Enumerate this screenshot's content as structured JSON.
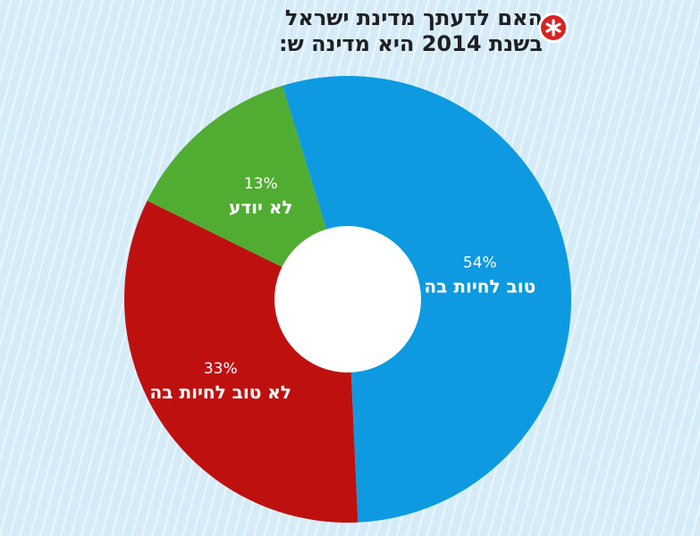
{
  "title": {
    "line1": "האם לדעתך מדינת ישראל",
    "line2": "בשנת 2014 היא מדינה ש:"
  },
  "logo_icon": "asterisk-badge-icon",
  "colors": {
    "background": "#d5ecf8",
    "good": "#0d9ae0",
    "not_good": "#bf1010",
    "dont_know": "#50ad32",
    "logo": "#d92222"
  },
  "chart_data": {
    "type": "pie",
    "donut": true,
    "title": "האם לדעתך מדינת ישראל בשנת 2014 היא מדינה ש:",
    "slices": [
      {
        "label": "טוב לחיות בה",
        "value": 54,
        "value_label": "54%",
        "color": "#0d9ae0"
      },
      {
        "label": "לא טוב לחיות בה",
        "value": 33,
        "value_label": "33%",
        "color": "#bf1010"
      },
      {
        "label": "לא יודע",
        "value": 13,
        "value_label": "13%",
        "color": "#50ad32"
      }
    ]
  }
}
